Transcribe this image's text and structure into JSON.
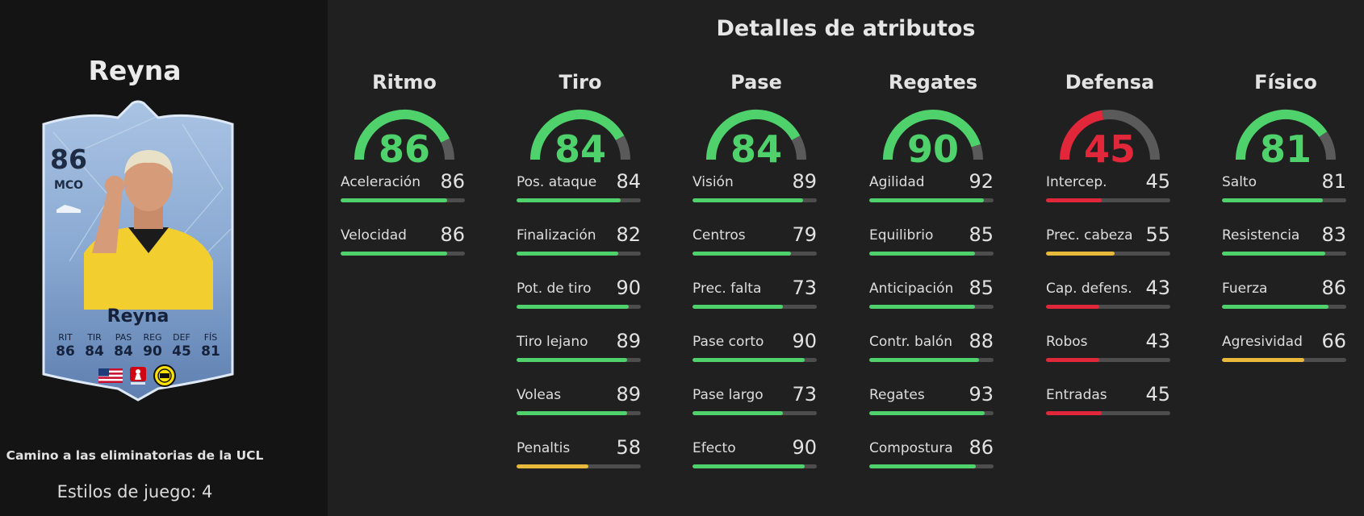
{
  "player": {
    "name": "Reyna",
    "card": {
      "rating": "86",
      "position": "MCO",
      "name": "Reyna",
      "stats_labels": [
        "RIT",
        "TIR",
        "PAS",
        "REG",
        "DEF",
        "FÍS"
      ],
      "stats_values": [
        "86",
        "84",
        "84",
        "90",
        "45",
        "81"
      ]
    },
    "campaign": "Camino a las eliminatorias de la UCL",
    "play_styles": "Estilos de juego: 4"
  },
  "colors": {
    "good": "#4fd26b",
    "mid": "#e8b93a",
    "bad": "#e0283a",
    "track": "#4d4d4d"
  },
  "section_title": "Detalles de atributos",
  "categories": [
    {
      "name": "Ritmo",
      "value": 86,
      "attributes": [
        {
          "name": "Aceleración",
          "value": 86
        },
        {
          "name": "Velocidad",
          "value": 86
        }
      ]
    },
    {
      "name": "Tiro",
      "value": 84,
      "attributes": [
        {
          "name": "Pos. ataque",
          "value": 84
        },
        {
          "name": "Finalización",
          "value": 82
        },
        {
          "name": "Pot. de tiro",
          "value": 90
        },
        {
          "name": "Tiro lejano",
          "value": 89
        },
        {
          "name": "Voleas",
          "value": 89
        },
        {
          "name": "Penaltis",
          "value": 58
        }
      ]
    },
    {
      "name": "Pase",
      "value": 84,
      "attributes": [
        {
          "name": "Visión",
          "value": 89
        },
        {
          "name": "Centros",
          "value": 79
        },
        {
          "name": "Prec. falta",
          "value": 73
        },
        {
          "name": "Pase corto",
          "value": 90
        },
        {
          "name": "Pase largo",
          "value": 73
        },
        {
          "name": "Efecto",
          "value": 90
        }
      ]
    },
    {
      "name": "Regates",
      "value": 90,
      "attributes": [
        {
          "name": "Agilidad",
          "value": 92
        },
        {
          "name": "Equilibrio",
          "value": 85
        },
        {
          "name": "Anticipación",
          "value": 85
        },
        {
          "name": "Contr. balón",
          "value": 88
        },
        {
          "name": "Regates",
          "value": 93
        },
        {
          "name": "Compostura",
          "value": 86
        }
      ]
    },
    {
      "name": "Defensa",
      "value": 45,
      "attributes": [
        {
          "name": "Intercep.",
          "value": 45
        },
        {
          "name": "Prec. cabeza",
          "value": 55
        },
        {
          "name": "Cap. defens.",
          "value": 43
        },
        {
          "name": "Robos",
          "value": 43
        },
        {
          "name": "Entradas",
          "value": 45
        }
      ]
    },
    {
      "name": "Físico",
      "value": 81,
      "attributes": [
        {
          "name": "Salto",
          "value": 81
        },
        {
          "name": "Resistencia",
          "value": 83
        },
        {
          "name": "Fuerza",
          "value": 86
        },
        {
          "name": "Agresividad",
          "value": 66
        }
      ]
    }
  ]
}
